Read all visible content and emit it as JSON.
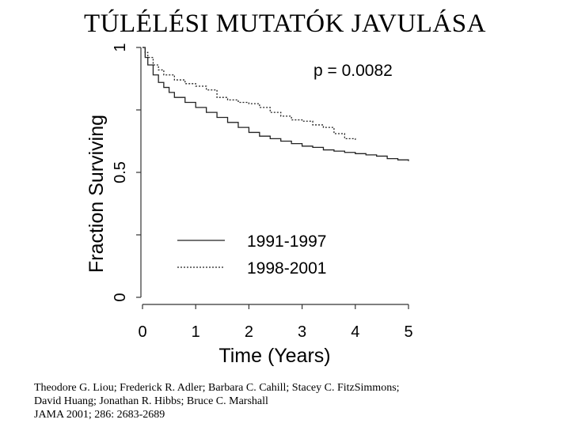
{
  "slide": {
    "title": "TÚLÉLÉSI MUTATÓK JAVULÁSA"
  },
  "chart_data": {
    "type": "line",
    "xlabel": "Time (Years)",
    "ylabel": "Fraction Surviving",
    "xlim": [
      0,
      5
    ],
    "ylim": [
      0,
      1
    ],
    "x_ticks": [
      "0",
      "1",
      "2",
      "3",
      "4",
      "5"
    ],
    "y_ticks": [
      "0",
      "0.5",
      "1"
    ],
    "y_tick_values": [
      0,
      0.25,
      0.5,
      0.75,
      1
    ],
    "annotation": "p = 0.0082",
    "legend_position": "lower-center",
    "grid": false,
    "series": [
      {
        "name": "1991-1997",
        "style": "solid",
        "x": [
          0,
          0.05,
          0.1,
          0.2,
          0.3,
          0.4,
          0.5,
          0.6,
          0.8,
          1.0,
          1.2,
          1.4,
          1.6,
          1.8,
          2.0,
          2.2,
          2.4,
          2.6,
          2.8,
          3.0,
          3.2,
          3.4,
          3.6,
          3.8,
          4.0,
          4.2,
          4.4,
          4.6,
          4.8,
          5.0
        ],
        "y": [
          1.0,
          0.96,
          0.93,
          0.89,
          0.86,
          0.84,
          0.82,
          0.8,
          0.78,
          0.76,
          0.74,
          0.72,
          0.7,
          0.68,
          0.66,
          0.645,
          0.635,
          0.625,
          0.615,
          0.605,
          0.6,
          0.59,
          0.585,
          0.58,
          0.575,
          0.57,
          0.565,
          0.555,
          0.55,
          0.545
        ]
      },
      {
        "name": "1998-2001",
        "style": "dotted",
        "x": [
          0,
          0.05,
          0.1,
          0.2,
          0.3,
          0.4,
          0.6,
          0.8,
          1.0,
          1.2,
          1.4,
          1.6,
          1.8,
          2.0,
          2.2,
          2.4,
          2.6,
          2.8,
          3.0,
          3.2,
          3.4,
          3.6,
          3.8,
          4.0
        ],
        "y": [
          1.0,
          0.98,
          0.96,
          0.93,
          0.91,
          0.89,
          0.87,
          0.855,
          0.845,
          0.83,
          0.8,
          0.79,
          0.78,
          0.775,
          0.76,
          0.74,
          0.725,
          0.71,
          0.705,
          0.69,
          0.68,
          0.655,
          0.635,
          0.63
        ]
      }
    ]
  },
  "citation": {
    "line1": "Theodore G. Liou; Frederick R. Adler; Barbara C. Cahill; Stacey C. FitzSimmons;",
    "line2": "David Huang; Jonathan R. Hibbs; Bruce C. Marshall",
    "line3": "JAMA 2001; 286: 2683-2689"
  }
}
